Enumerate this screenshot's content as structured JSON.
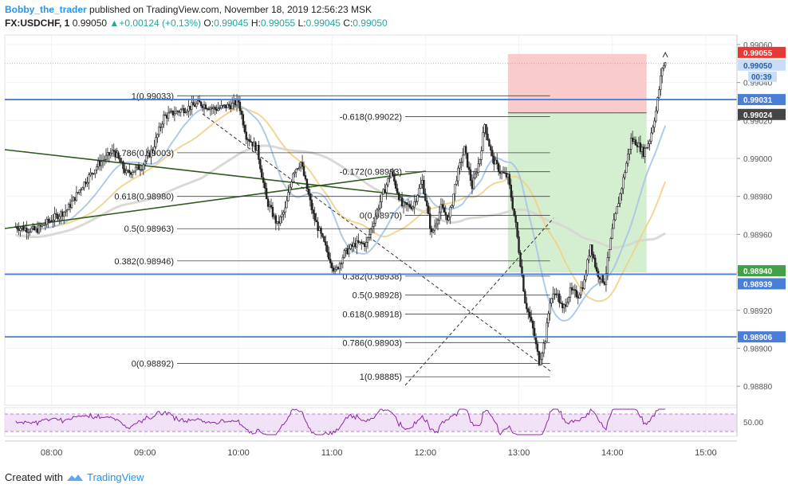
{
  "header": {
    "user": "Bobby_the_trader",
    "published_text": "published on TradingView.com, November 18, 2019 12:56:23 MSK",
    "symbol": "FX:USDCHF, 1",
    "last": "0.99050",
    "change": "+0.00124 (+0.13%)",
    "o_label": "O:",
    "o": "0.99045",
    "h_label": "H:",
    "h": "0.99055",
    "l_label": "L:",
    "l": "0.99045",
    "c_label": "C:",
    "c": "0.99050"
  },
  "footer": {
    "created_with": "Created with",
    "brand": "TradingView"
  },
  "colors": {
    "candle": "#222222",
    "blue_line": "#4a7ed8",
    "green_line": "#2e5a1e",
    "ma_blue": "#a8c4e8",
    "ma_yellow": "#f0d18a",
    "ma_grey": "#d6d6d0",
    "rsi_line": "#8e24aa",
    "rsi_fill": "#ecd6f5",
    "stop_fill": "#f8c2c2",
    "target_fill": "#cdebc8",
    "price_red": "#e53935",
    "price_blue_tag": "#4a7ed8",
    "price_dark": "#454545"
  },
  "chart_data": {
    "type": "candlestick",
    "symbol": "FX:USDCHF",
    "interval": "1",
    "ylim": [
      0.9887,
      0.99065
    ],
    "y_ticks": [
      "0.99060",
      "0.99040",
      "0.99020",
      "0.99000",
      "0.98980",
      "0.98960",
      "0.98940",
      "0.98920",
      "0.98900",
      "0.98880"
    ],
    "time_ticks": [
      "08:00",
      "09:00",
      "10:00",
      "11:00",
      "12:00",
      "13:00",
      "14:00",
      "15:00"
    ],
    "time_range": [
      "07:30",
      "15:20"
    ],
    "price_tags": [
      {
        "value": 0.99055,
        "label": "0.99055",
        "style": "red"
      },
      {
        "value": 0.9905,
        "label": "0.99050",
        "style": "light"
      },
      {
        "value": 0.99031,
        "label": "0.99031",
        "style": "blue"
      },
      {
        "value": 0.99024,
        "label": "0.99024",
        "style": "dark"
      },
      {
        "value": 0.9894,
        "label": "0.98940",
        "style": "green"
      },
      {
        "value": 0.98939,
        "label": "0.98939",
        "style": "blue"
      },
      {
        "value": 0.98906,
        "label": "0.98906",
        "style": "blue"
      }
    ],
    "countdown": "00:39",
    "horizontal_lines": [
      0.99031,
      0.98939,
      0.98906
    ],
    "fib_top": {
      "x_range": [
        "09:00",
        "13:20"
      ],
      "levels": [
        {
          "label": "1(0.99033)",
          "value": 0.99033
        },
        {
          "label": "0.786(0.99003)",
          "value": 0.99003
        },
        {
          "label": "0.618(0.98980)",
          "value": 0.9898
        },
        {
          "label": "0.5(0.98963)",
          "value": 0.98963
        },
        {
          "label": "0.382(0.98946)",
          "value": 0.98946
        },
        {
          "label": "0(0.98892)",
          "value": 0.98892
        }
      ]
    },
    "fib_ext": {
      "x_range": [
        "11:00",
        "13:20"
      ],
      "levels": [
        {
          "label": "-0.618(0.99022)",
          "value": 0.99022
        },
        {
          "label": "-0.172(0.98993)",
          "value": 0.98993
        },
        {
          "label": "0(0.98970)",
          "value": 0.9897
        },
        {
          "label": "0.382(0.98938)",
          "value": 0.98938
        },
        {
          "label": "0.5(0.98928)",
          "value": 0.98928
        },
        {
          "label": "0.618(0.98918)",
          "value": 0.98918
        },
        {
          "label": "0.786(0.98903)",
          "value": 0.98903
        },
        {
          "label": "1(0.98885)",
          "value": 0.98885
        }
      ]
    },
    "position": {
      "entry": 0.99024,
      "stop": 0.99055,
      "target": 0.9894,
      "x_range": [
        "12:53",
        "14:22"
      ]
    },
    "rsi": {
      "level": "50.00"
    }
  }
}
